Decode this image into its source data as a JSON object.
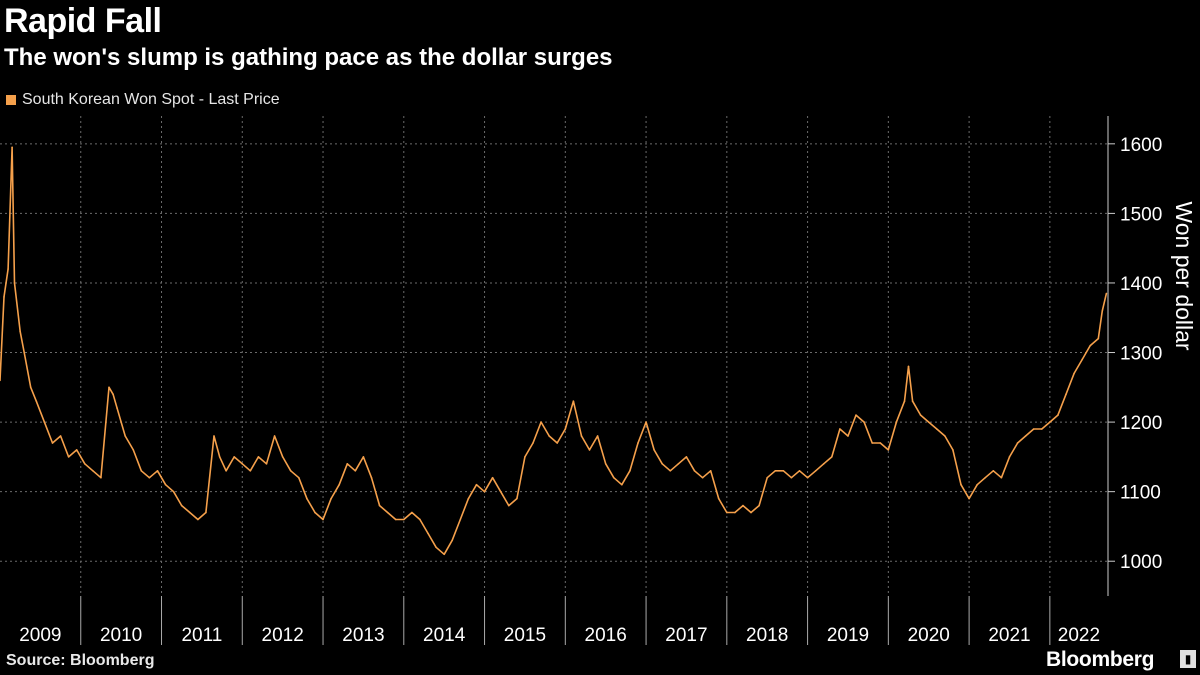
{
  "header": {
    "title": "Rapid Fall",
    "subtitle": "The won's slump is gathing pace as the dollar surges"
  },
  "footer": {
    "source": "Source: Bloomberg",
    "brand": "Bloomberg"
  },
  "colors": {
    "background": "#000000",
    "series": "#f5a04b",
    "grid": "#6b6b6b"
  },
  "chart_data": {
    "type": "line",
    "title": "Rapid Fall",
    "subtitle": "The won's slump is gathing pace as the dollar surges",
    "xlabel": "",
    "ylabel": "Won per dollar",
    "ylim": [
      950,
      1640
    ],
    "xlim": [
      2009.0,
      2022.72
    ],
    "yticks": [
      1000,
      1100,
      1200,
      1300,
      1400,
      1500,
      1600
    ],
    "xticks": [
      "2009",
      "2010",
      "2011",
      "2012",
      "2013",
      "2014",
      "2015",
      "2016",
      "2017",
      "2018",
      "2019",
      "2020",
      "2021",
      "2022"
    ],
    "grid": true,
    "legend_position": "top-left",
    "series": [
      {
        "name": "South Korean Won Spot - Last Price",
        "x": [
          2009.0,
          2009.05,
          2009.1,
          2009.15,
          2009.18,
          2009.25,
          2009.3,
          2009.38,
          2009.45,
          2009.55,
          2009.65,
          2009.75,
          2009.85,
          2009.95,
          2010.05,
          2010.15,
          2010.25,
          2010.35,
          2010.4,
          2010.45,
          2010.55,
          2010.65,
          2010.75,
          2010.85,
          2010.95,
          2011.05,
          2011.15,
          2011.25,
          2011.35,
          2011.45,
          2011.55,
          2011.65,
          2011.72,
          2011.8,
          2011.9,
          2012.0,
          2012.1,
          2012.2,
          2012.3,
          2012.4,
          2012.5,
          2012.6,
          2012.7,
          2012.8,
          2012.9,
          2013.0,
          2013.1,
          2013.2,
          2013.3,
          2013.4,
          2013.5,
          2013.6,
          2013.7,
          2013.8,
          2013.9,
          2014.0,
          2014.1,
          2014.2,
          2014.3,
          2014.4,
          2014.5,
          2014.6,
          2014.7,
          2014.8,
          2014.9,
          2015.0,
          2015.1,
          2015.2,
          2015.3,
          2015.4,
          2015.5,
          2015.6,
          2015.7,
          2015.8,
          2015.9,
          2016.0,
          2016.1,
          2016.2,
          2016.3,
          2016.4,
          2016.5,
          2016.6,
          2016.7,
          2016.8,
          2016.9,
          2017.0,
          2017.1,
          2017.2,
          2017.3,
          2017.4,
          2017.5,
          2017.6,
          2017.7,
          2017.8,
          2017.9,
          2018.0,
          2018.1,
          2018.2,
          2018.3,
          2018.4,
          2018.5,
          2018.6,
          2018.7,
          2018.8,
          2018.9,
          2019.0,
          2019.1,
          2019.2,
          2019.3,
          2019.4,
          2019.5,
          2019.6,
          2019.7,
          2019.8,
          2019.9,
          2020.0,
          2020.1,
          2020.2,
          2020.25,
          2020.3,
          2020.4,
          2020.5,
          2020.6,
          2020.7,
          2020.8,
          2020.9,
          2021.0,
          2021.1,
          2021.2,
          2021.3,
          2021.4,
          2021.5,
          2021.6,
          2021.7,
          2021.8,
          2021.9,
          2022.0,
          2022.1,
          2022.2,
          2022.3,
          2022.4,
          2022.5,
          2022.6,
          2022.65,
          2022.7
        ],
        "y": [
          1260,
          1380,
          1420,
          1595,
          1400,
          1330,
          1300,
          1250,
          1230,
          1200,
          1170,
          1180,
          1150,
          1160,
          1140,
          1130,
          1120,
          1250,
          1240,
          1220,
          1180,
          1160,
          1130,
          1120,
          1130,
          1110,
          1100,
          1080,
          1070,
          1060,
          1070,
          1180,
          1150,
          1130,
          1150,
          1140,
          1130,
          1150,
          1140,
          1180,
          1150,
          1130,
          1120,
          1090,
          1070,
          1060,
          1090,
          1110,
          1140,
          1130,
          1150,
          1120,
          1080,
          1070,
          1060,
          1060,
          1070,
          1060,
          1040,
          1020,
          1010,
          1030,
          1060,
          1090,
          1110,
          1100,
          1120,
          1100,
          1080,
          1090,
          1150,
          1170,
          1200,
          1180,
          1170,
          1190,
          1230,
          1180,
          1160,
          1180,
          1140,
          1120,
          1110,
          1130,
          1170,
          1200,
          1160,
          1140,
          1130,
          1140,
          1150,
          1130,
          1120,
          1130,
          1090,
          1070,
          1070,
          1080,
          1070,
          1080,
          1120,
          1130,
          1130,
          1120,
          1130,
          1120,
          1130,
          1140,
          1150,
          1190,
          1180,
          1210,
          1200,
          1170,
          1170,
          1160,
          1200,
          1230,
          1280,
          1230,
          1210,
          1200,
          1190,
          1180,
          1160,
          1110,
          1090,
          1110,
          1120,
          1130,
          1120,
          1150,
          1170,
          1180,
          1190,
          1190,
          1200,
          1210,
          1240,
          1270,
          1290,
          1310,
          1320,
          1360,
          1385
        ]
      }
    ]
  }
}
